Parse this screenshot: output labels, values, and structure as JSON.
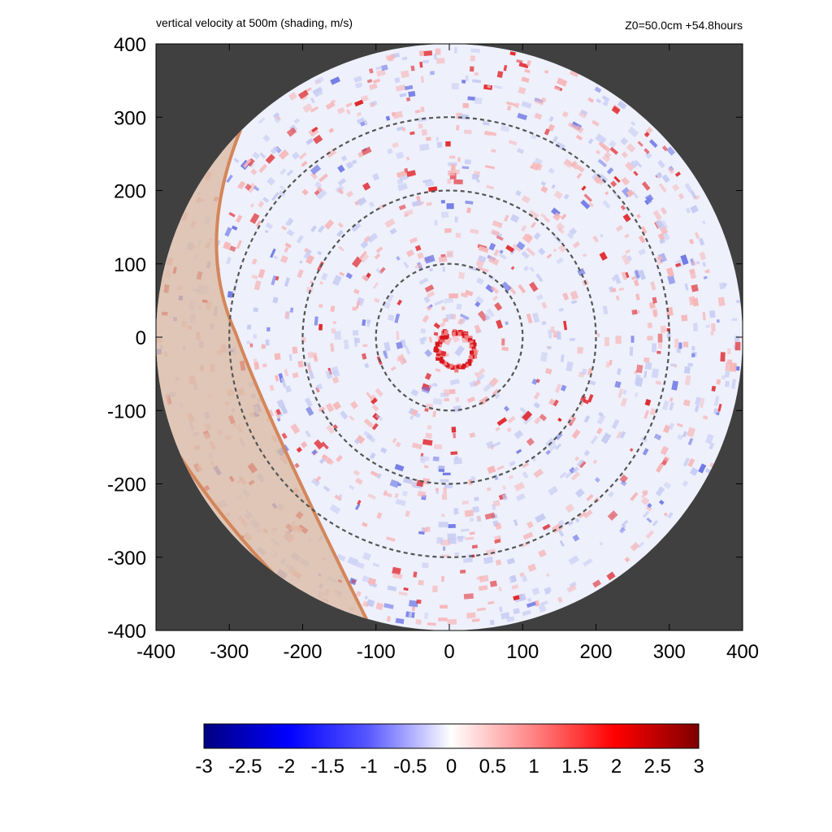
{
  "chart_data": {
    "type": "heatmap",
    "title": "vertical velocity at 500m (shading, m/s)",
    "info": "Z0=50.0cm  +54.8hours",
    "xlim": [
      -400,
      400
    ],
    "ylim": [
      -400,
      400
    ],
    "x_ticks": [
      "-400",
      "-300",
      "-200",
      "-100",
      "0",
      "100",
      "200",
      "300",
      "400"
    ],
    "y_ticks": [
      "400",
      "300",
      "200",
      "100",
      "0",
      "-100",
      "-200",
      "-300",
      "-400"
    ],
    "domain_radius": 400,
    "reference_circle_radii": [
      100,
      200,
      300
    ],
    "colorbar": {
      "range": [
        -3,
        3
      ],
      "ticks": [
        "-3",
        "-2.5",
        "-2",
        "-1.5",
        "-1",
        "-0.5",
        "0",
        "0.5",
        "1",
        "1.5",
        "2",
        "2.5",
        "3"
      ]
    },
    "colors": {
      "background": "#404040",
      "circle_line": "#555555",
      "land_overlay": "#d9b8a0",
      "coastline": "#d4865a"
    }
  }
}
